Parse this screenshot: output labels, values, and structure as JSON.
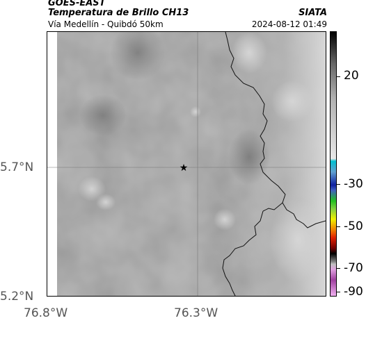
{
  "header": {
    "title_line1": "GOES-EAST",
    "title_line2": "Temperatura de Brillo CH13",
    "subtitle": "Vía Medellín - Quibdó 50km",
    "brand": "SIATA",
    "datetime": "2024-08-12 01:49"
  },
  "map": {
    "lat_ticks": [
      "5.7°N",
      "5.2°N"
    ],
    "lon_ticks": [
      "76.8°W",
      "76.3°W"
    ],
    "marker_icon": "star-icon"
  },
  "colorbar": {
    "labels": [
      "20",
      "-30",
      "-50",
      "-70",
      "-90"
    ],
    "colors": {
      "gray_light": "#e8e8e8",
      "cyan": "#00c0d0",
      "blue": "#1020a0",
      "green": "#20c020",
      "yellow": "#f0f000",
      "red": "#e02000",
      "black": "#000000",
      "magenta": "#a040a0"
    }
  }
}
